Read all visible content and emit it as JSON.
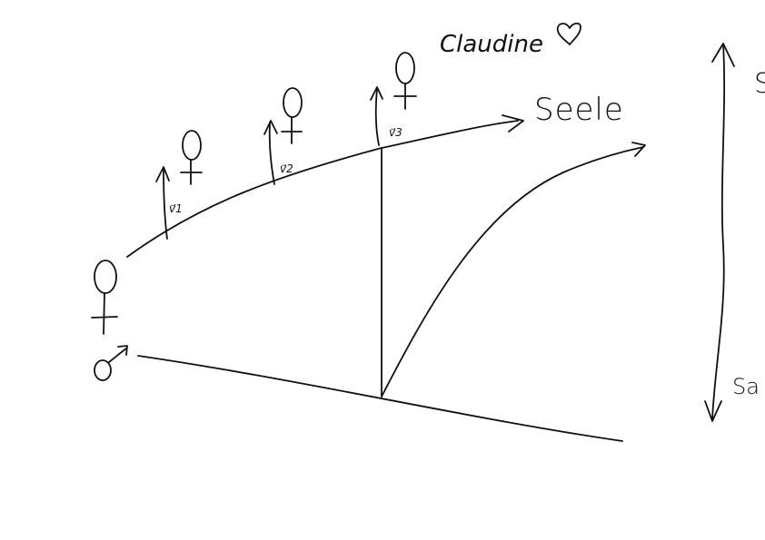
{
  "diagram": {
    "stroke_color": "#111111",
    "background": "#ffffff",
    "labels": {
      "top_name": "Claudine",
      "upper_curve": "Seele",
      "vec1": "v1",
      "vec2": "v2",
      "vec3": "v3",
      "right_bottom": "Sa",
      "right_top": "S"
    },
    "icons": {
      "female": "female-symbol",
      "male": "male-symbol",
      "heart": "heart-outline"
    }
  }
}
